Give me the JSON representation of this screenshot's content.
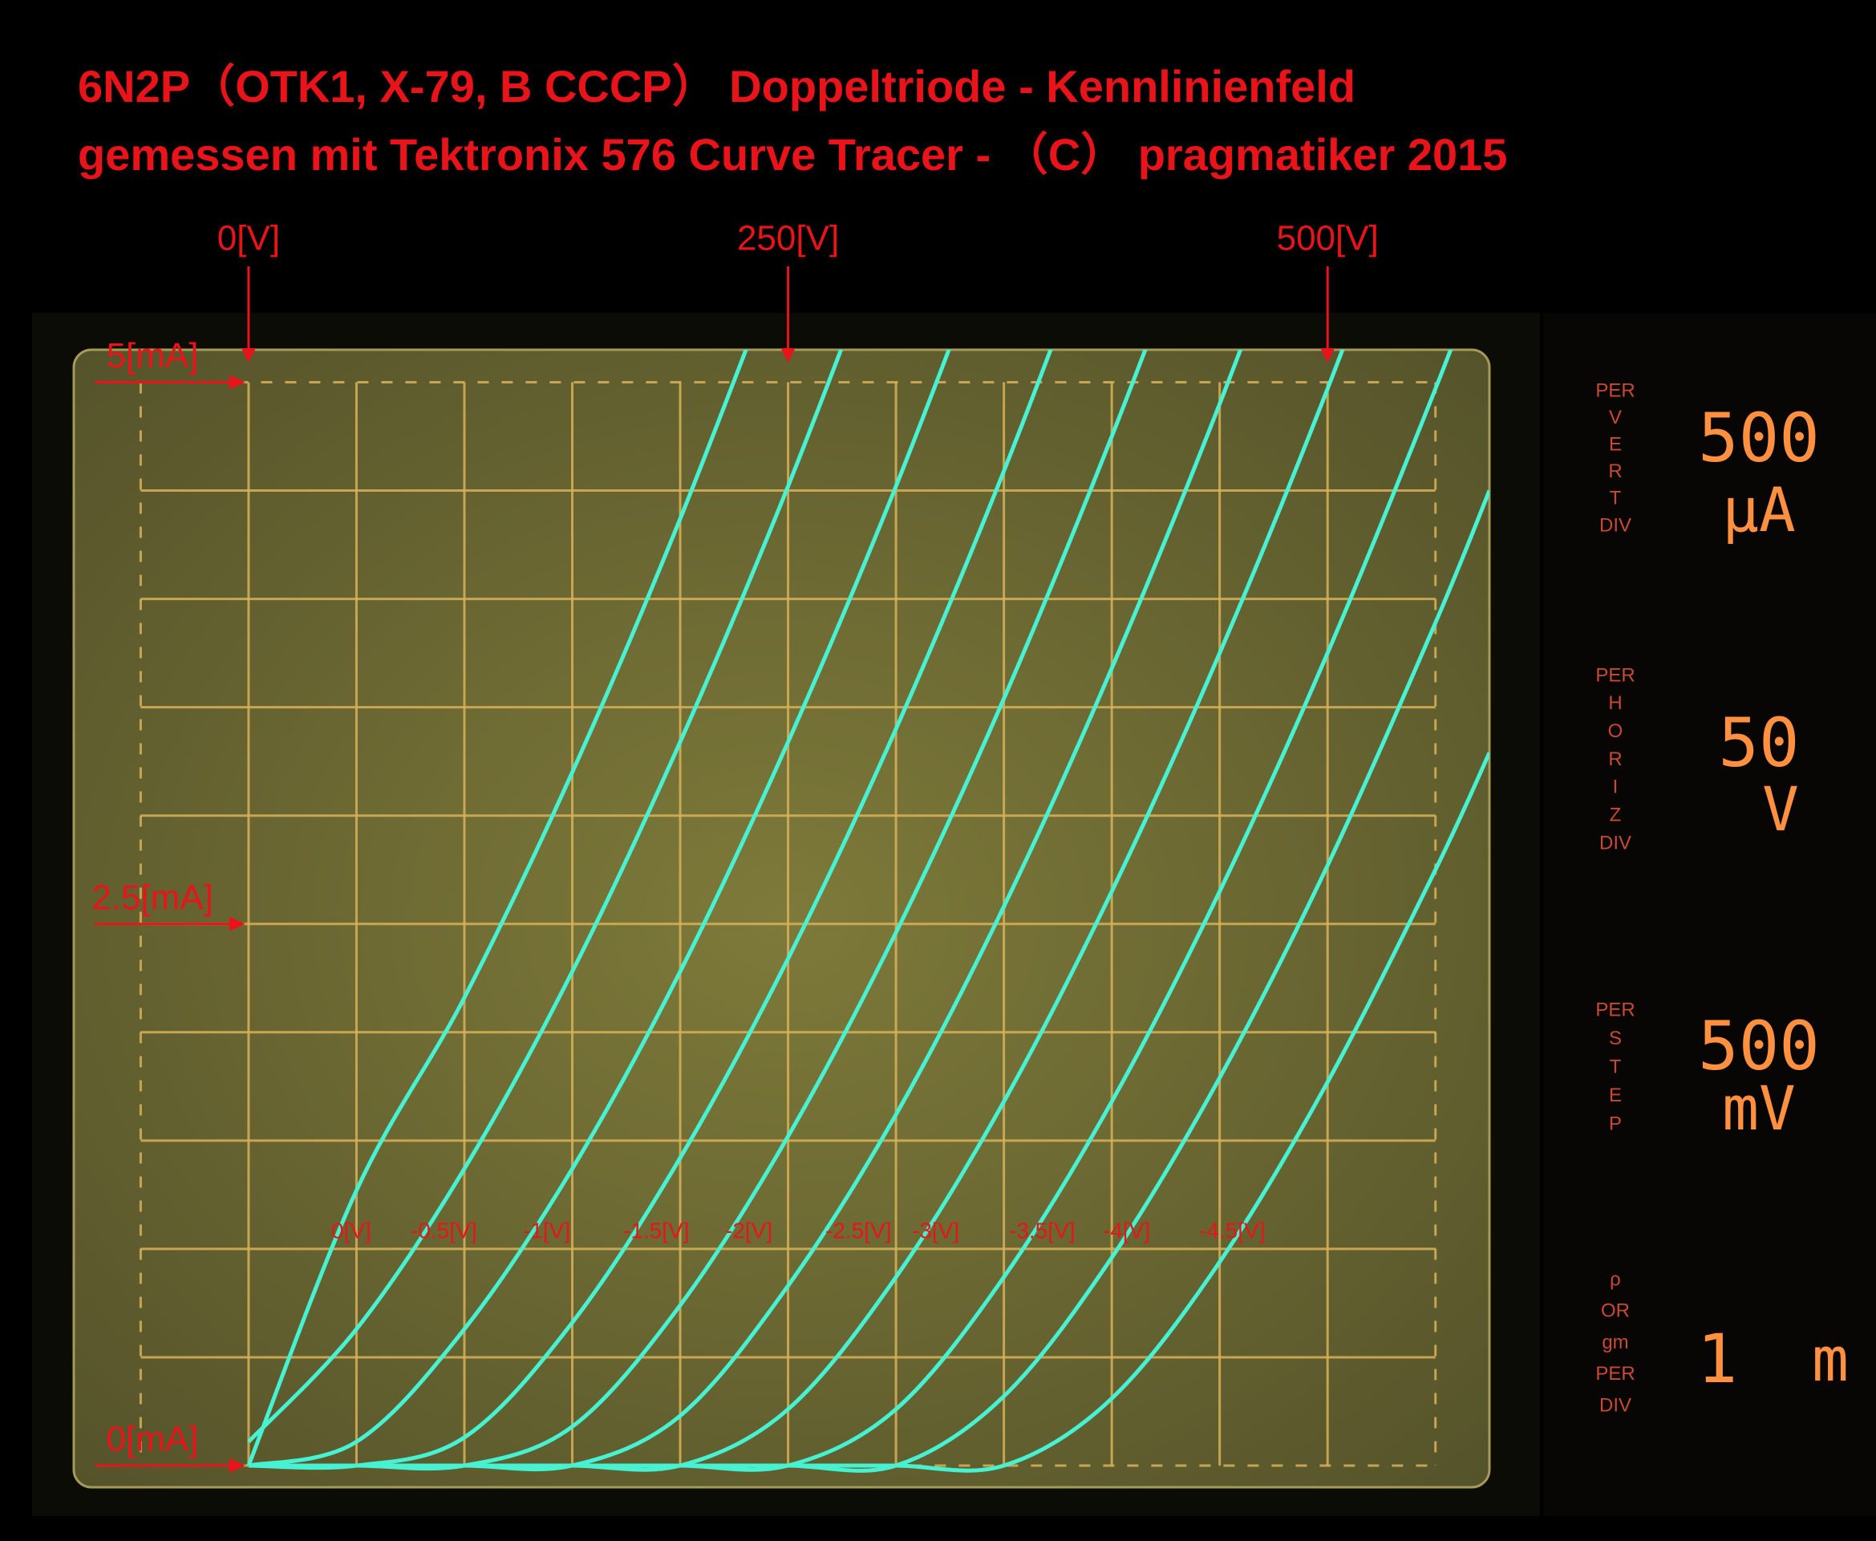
{
  "chart_data": {
    "type": "line",
    "title": "6N2P（OTK1, X-79, B CCCP） Doppeltriode - Kennlinienfeld",
    "subtitle": "gemessen mit Tektronix 576 Curve Tracer - （C） pragmatiker 2015",
    "x": [
      0,
      50,
      100,
      150,
      200,
      250,
      300,
      350,
      400,
      450,
      500,
      550,
      575
    ],
    "series": [
      {
        "name": "0[V]",
        "values": [
          0,
          1.27,
          2.16,
          3.2,
          4.37,
          5.66,
          null,
          null,
          null,
          null,
          null,
          null,
          null
        ]
      },
      {
        "name": "-0.5[V]",
        "values": [
          0.11,
          0.63,
          1.37,
          2.28,
          3.34,
          4.52,
          5.82,
          null,
          null,
          null,
          null,
          null,
          null
        ]
      },
      {
        "name": "-1[V]",
        "values": [
          0,
          0.11,
          0.63,
          1.37,
          2.28,
          3.34,
          4.52,
          5.82,
          null,
          null,
          null,
          null,
          null
        ]
      },
      {
        "name": "-1.5[V]",
        "values": [
          0,
          0,
          0.13,
          0.66,
          1.42,
          2.34,
          3.4,
          4.59,
          5.9,
          null,
          null,
          null,
          null
        ]
      },
      {
        "name": "-2[V]",
        "values": [
          0,
          0,
          0,
          0.18,
          0.74,
          1.52,
          2.46,
          3.54,
          4.75,
          6.06,
          null,
          null,
          null
        ]
      },
      {
        "name": "-2.5[V]",
        "values": [
          0,
          0,
          0,
          0,
          0.23,
          0.83,
          1.62,
          2.58,
          3.68,
          4.9,
          6.23,
          null,
          null
        ]
      },
      {
        "name": "-3[V]",
        "values": [
          0,
          0,
          0,
          0,
          0,
          0.26,
          0.87,
          1.68,
          2.65,
          3.75,
          4.97,
          6.31,
          null
        ]
      },
      {
        "name": "-3.5[V]",
        "values": [
          0,
          0,
          0,
          0,
          0,
          0,
          0.26,
          0.87,
          1.68,
          2.65,
          3.75,
          4.97,
          5.63
        ]
      },
      {
        "name": "-4[V]",
        "values": [
          0,
          0,
          0,
          0,
          0,
          0,
          0,
          0.32,
          0.96,
          1.79,
          2.77,
          3.89,
          4.5
        ]
      },
      {
        "name": "-4.5[V]",
        "values": [
          0,
          0,
          0,
          0,
          0,
          0,
          0,
          0,
          0.31,
          0.94,
          1.77,
          2.75,
          3.29
        ]
      }
    ],
    "color": "#46f2d2",
    "xlim": [
      -81,
      575
    ],
    "ylim": [
      -0.1,
      5.15
    ],
    "xticks": [
      {
        "value": 0,
        "label": "0[V]"
      },
      {
        "value": 250,
        "label": "250[V]"
      },
      {
        "value": 500,
        "label": "500[V]"
      }
    ],
    "yticks": [
      {
        "value": 0,
        "label": "0[mA]"
      },
      {
        "value": 2.5,
        "label": "2.5[mA]"
      },
      {
        "value": 5,
        "label": "5[mA]"
      }
    ],
    "grid": true,
    "grid_color": "#d9b25a",
    "xgrid": [
      -50,
      0,
      50,
      100,
      150,
      200,
      250,
      300,
      350,
      400,
      450,
      500,
      550
    ],
    "ygrid": [
      0,
      0.5,
      1,
      1.5,
      2,
      2.5,
      3,
      3.5,
      4,
      4.5,
      5
    ]
  },
  "panel": [
    {
      "label": [
        "PER",
        "V",
        "E",
        "R",
        "T",
        "DIV"
      ],
      "value": "500",
      "unit": "µA"
    },
    {
      "label": [
        "PER",
        "H",
        "O",
        "R",
        "I",
        "Z",
        "DIV"
      ],
      "value": "50",
      "unit": "V"
    },
    {
      "label": [
        "PER",
        "S",
        "T",
        "E",
        "P"
      ],
      "value": "500",
      "unit": "mV"
    },
    {
      "label": [
        "ρ",
        "OR",
        "gm",
        "PER",
        "DIV"
      ],
      "value": "1",
      "unit": "m"
    }
  ]
}
